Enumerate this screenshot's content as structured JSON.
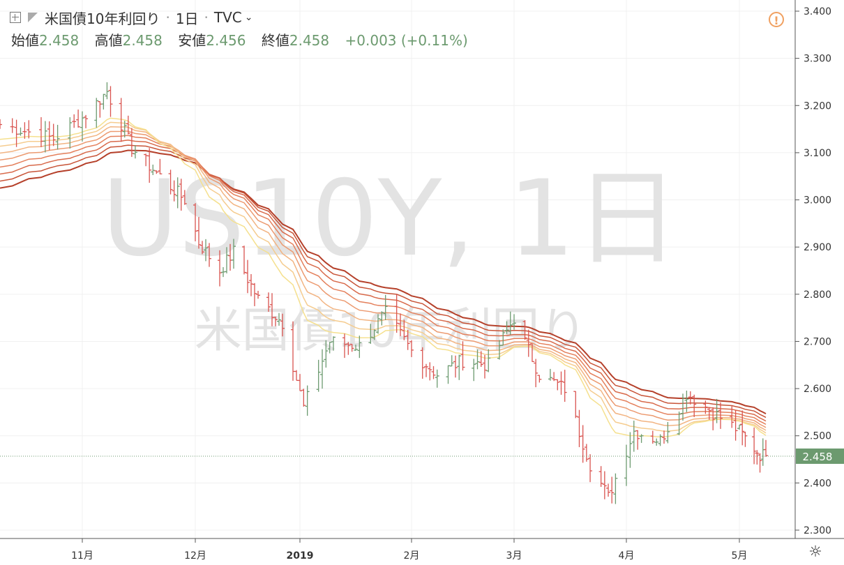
{
  "header": {
    "symbol_name": "米国債10年利回り",
    "interval": "1日",
    "source": "TVC",
    "open_label": "始値",
    "open": "2.458",
    "high_label": "高値",
    "high": "2.458",
    "low_label": "安値",
    "low": "2.456",
    "close_label": "終値",
    "close": "2.458",
    "change": "+0.003 (+0.11%)"
  },
  "watermark": {
    "line1": "US10Y, 1日",
    "line2": "米国債10年利回り"
  },
  "price_tag": "2.458",
  "colors": {
    "up": "#6c9a6f",
    "down": "#d9534f",
    "price_line": "#6c9a6f",
    "alert": "#f0a060"
  },
  "icons": [
    "add-icon",
    "flag-icon",
    "chevron-down-icon",
    "alert-icon",
    "gear-icon"
  ],
  "chart_data": {
    "type": "line",
    "chart_style": "ohlc-bars with ribbon moving averages",
    "y_ticks": [
      "3.400",
      "3.300",
      "3.200",
      "3.100",
      "3.000",
      "2.900",
      "2.800",
      "2.700",
      "2.600",
      "2.500",
      "2.400",
      "2.300"
    ],
    "ylim": [
      2.285,
      3.41
    ],
    "x_ticks": [
      "11月",
      "12月",
      "2019",
      "2月",
      "3月",
      "4月",
      "5月"
    ],
    "grid": true,
    "last_value": 2.458,
    "approximate_close_path": [
      [
        "2018-10-12",
        3.16
      ],
      [
        "2018-10-25",
        3.13
      ],
      [
        "2018-11-02",
        3.18
      ],
      [
        "2018-11-08",
        3.23
      ],
      [
        "2018-11-15",
        3.11
      ],
      [
        "2018-11-23",
        3.05
      ],
      [
        "2018-11-30",
        3.0
      ],
      [
        "2018-12-04",
        2.91
      ],
      [
        "2018-12-10",
        2.85
      ],
      [
        "2018-12-14",
        2.89
      ],
      [
        "2018-12-21",
        2.79
      ],
      [
        "2018-12-28",
        2.74
      ],
      [
        "2019-01-03",
        2.56
      ],
      [
        "2019-01-10",
        2.7
      ],
      [
        "2019-01-18",
        2.69
      ],
      [
        "2019-01-25",
        2.76
      ],
      [
        "2019-02-01",
        2.68
      ],
      [
        "2019-02-08",
        2.63
      ],
      [
        "2019-02-15",
        2.66
      ],
      [
        "2019-02-22",
        2.65
      ],
      [
        "2019-03-01",
        2.75
      ],
      [
        "2019-03-08",
        2.63
      ],
      [
        "2019-03-15",
        2.6
      ],
      [
        "2019-03-22",
        2.44
      ],
      [
        "2019-03-27",
        2.37
      ],
      [
        "2019-04-03",
        2.51
      ],
      [
        "2019-04-10",
        2.49
      ],
      [
        "2019-04-17",
        2.59
      ],
      [
        "2019-04-24",
        2.55
      ],
      [
        "2019-05-01",
        2.51
      ],
      [
        "2019-05-08",
        2.46
      ],
      [
        "2019-05-10",
        2.458
      ]
    ]
  }
}
